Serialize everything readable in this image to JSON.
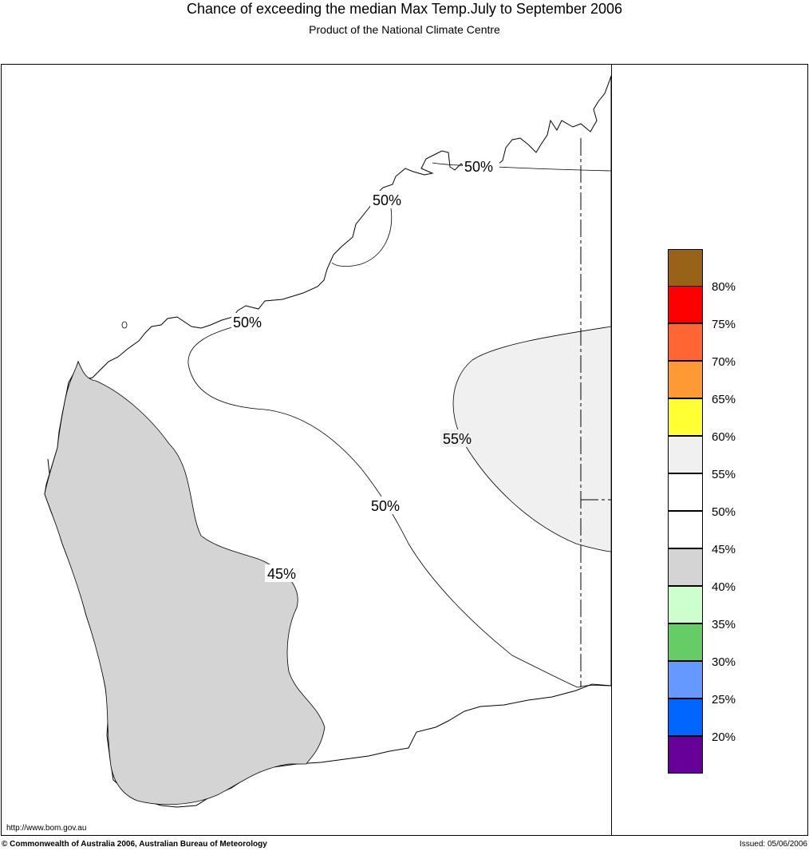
{
  "header": {
    "title": "Chance of exceeding the median Max Temp.July to September 2006",
    "subtitle": "Product of the National Climate Centre"
  },
  "map": {
    "region": "Western Australia",
    "contour_labels": [
      "50%",
      "50%",
      "50%",
      "50%",
      "55%",
      "45%"
    ],
    "fill_colors": {
      "below_45": "#d4d4d4",
      "above_55": "#f0f0f0",
      "land": "#ffffff"
    }
  },
  "legend": {
    "boxes": [
      {
        "color": "#996219"
      },
      {
        "color": "#ff0000"
      },
      {
        "color": "#ff6633"
      },
      {
        "color": "#ff9933"
      },
      {
        "color": "#ffff33"
      },
      {
        "color": "#f0f0f0"
      },
      {
        "color": "#ffffff"
      },
      {
        "color": "#ffffff"
      },
      {
        "color": "#d4d4d4"
      },
      {
        "color": "#ccffcc"
      },
      {
        "color": "#66cc66"
      },
      {
        "color": "#6699ff"
      },
      {
        "color": "#0066ff"
      },
      {
        "color": "#660099"
      }
    ],
    "labels": [
      "80%",
      "75%",
      "70%",
      "65%",
      "60%",
      "55%",
      "50%",
      "45%",
      "40%",
      "35%",
      "30%",
      "25%",
      "20%"
    ]
  },
  "footer": {
    "url": "http://www.bom.gov.au",
    "copyright": "© Commonwealth of Australia 2006, Australian Bureau of Meteorology",
    "issued": "Issued: 05/06/2006"
  }
}
